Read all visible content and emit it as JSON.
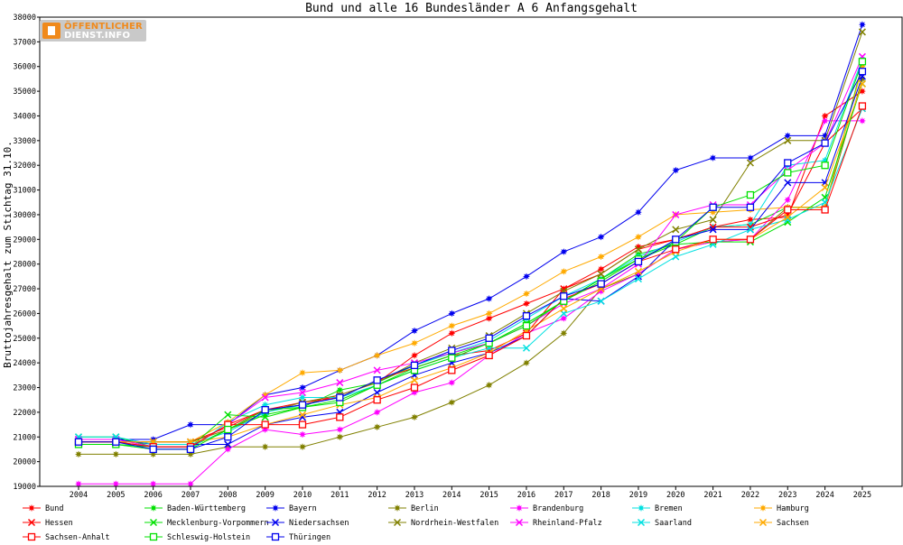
{
  "logo": {
    "line1": "ÖFFENTLICHER",
    "line2": "DIENST.INFO"
  },
  "chart_data": {
    "type": "line",
    "title": "Bund und alle 16 Bundesländer A 6 Anfangsgehalt",
    "ylabel": "Bruttojahresgehalt zum Stichtag 31.10.",
    "xlabel": "",
    "ylim": [
      19000,
      38000
    ],
    "yticks": [
      19000,
      20000,
      21000,
      22000,
      23000,
      24000,
      25000,
      26000,
      27000,
      28000,
      29000,
      30000,
      31000,
      32000,
      33000,
      34000,
      35000,
      36000,
      37000,
      38000
    ],
    "categories": [
      "2004",
      "2005",
      "2006",
      "2007",
      "2008",
      "2009",
      "2010",
      "2011",
      "2012",
      "2013",
      "2014",
      "2015",
      "2016",
      "2017",
      "2018",
      "2019",
      "2020",
      "2021",
      "2022",
      "2023",
      "2024",
      "2025"
    ],
    "grid": false,
    "legend_position": "bottom",
    "series": [
      {
        "name": "Bund",
        "color": "#ff0000",
        "marker": "star",
        "values": [
          20800,
          20800,
          20600,
          20600,
          21500,
          22100,
          22300,
          22700,
          23200,
          24300,
          25200,
          25800,
          26400,
          27000,
          27800,
          28700,
          29000,
          29500,
          29800,
          29900,
          34000,
          35000
        ]
      },
      {
        "name": "Baden-Württemberg",
        "color": "#00e000",
        "marker": "star",
        "values": [
          20700,
          20700,
          20600,
          20600,
          21300,
          21900,
          22200,
          22900,
          23200,
          23900,
          24400,
          24800,
          25600,
          26500,
          27400,
          28400,
          28800,
          29500,
          29600,
          30300,
          30300,
          36100
        ]
      },
      {
        "name": "Bayern",
        "color": "#0000ee",
        "marker": "star",
        "values": [
          20900,
          20900,
          20900,
          21500,
          21500,
          22700,
          23000,
          23700,
          24300,
          25300,
          26000,
          26600,
          27500,
          28500,
          29100,
          30100,
          31800,
          32300,
          32300,
          33200,
          33200,
          37700
        ]
      },
      {
        "name": "Berlin",
        "color": "#808000",
        "marker": "star",
        "values": [
          20300,
          20300,
          20300,
          20300,
          20600,
          20600,
          20600,
          21000,
          21400,
          21800,
          22400,
          23100,
          24000,
          25200,
          27000,
          27600,
          28600,
          28900,
          29000,
          30300,
          30300,
          35500
        ]
      },
      {
        "name": "Brandenburg",
        "color": "#ff00ff",
        "marker": "star",
        "values": [
          19100,
          19100,
          19100,
          19100,
          20500,
          21300,
          21100,
          21300,
          22000,
          22800,
          23200,
          24300,
          25200,
          25800,
          26900,
          27600,
          28600,
          28900,
          29000,
          30600,
          33800,
          33800
        ]
      },
      {
        "name": "Bremen",
        "color": "#00e0e0",
        "marker": "star",
        "values": [
          20700,
          20700,
          20500,
          20500,
          21600,
          22300,
          22600,
          22600,
          23300,
          23900,
          24400,
          24900,
          25800,
          26700,
          27400,
          28300,
          28900,
          29500,
          29600,
          32000,
          32200,
          36300
        ]
      },
      {
        "name": "Hamburg",
        "color": "#ffaa00",
        "marker": "star",
        "values": [
          20800,
          20800,
          20800,
          20800,
          21600,
          22700,
          23600,
          23700,
          24300,
          24800,
          25500,
          26000,
          26800,
          27700,
          28300,
          29100,
          30000,
          30100,
          30200,
          30300,
          30300,
          36000
        ]
      },
      {
        "name": "Hessen",
        "color": "#ff0000",
        "marker": "x",
        "values": [
          20800,
          20800,
          20800,
          20800,
          21400,
          22100,
          22400,
          22600,
          23300,
          23800,
          24300,
          24500,
          25200,
          27000,
          27600,
          28600,
          29000,
          29500,
          29500,
          30000,
          32900,
          34300
        ]
      },
      {
        "name": "Mecklenburg-Vorpommern",
        "color": "#00e000",
        "marker": "x",
        "values": [
          21000,
          21000,
          20600,
          20600,
          21900,
          21800,
          22200,
          22500,
          23100,
          23800,
          24300,
          24800,
          25600,
          26500,
          27400,
          28200,
          28800,
          28900,
          28900,
          29700,
          30700,
          35300
        ]
      },
      {
        "name": "Niedersachsen",
        "color": "#0000ee",
        "marker": "x",
        "values": [
          20900,
          20900,
          20700,
          20700,
          20700,
          21500,
          21800,
          22000,
          22800,
          23500,
          24000,
          24400,
          25100,
          26600,
          26500,
          27500,
          29000,
          29400,
          29400,
          31300,
          31300,
          35600
        ]
      },
      {
        "name": "Nordrhein-Westfalen",
        "color": "#808000",
        "marker": "x",
        "values": [
          20800,
          20800,
          20800,
          20800,
          21300,
          22000,
          22400,
          22700,
          23200,
          24000,
          24600,
          25100,
          26000,
          26900,
          27600,
          28600,
          29400,
          29800,
          32100,
          33000,
          33000,
          37400
        ]
      },
      {
        "name": "Rheinland-Pfalz",
        "color": "#ff00ff",
        "marker": "x",
        "values": [
          20900,
          20900,
          20600,
          20600,
          21500,
          22600,
          22800,
          23200,
          23700,
          24000,
          24400,
          24800,
          25500,
          26400,
          27000,
          28000,
          30000,
          30400,
          30400,
          31800,
          32900,
          36400
        ]
      },
      {
        "name": "Saarland",
        "color": "#00e0e0",
        "marker": "x",
        "values": [
          21000,
          21000,
          20700,
          20700,
          21200,
          22000,
          22300,
          22600,
          23100,
          23700,
          24200,
          24600,
          24600,
          26000,
          26500,
          27400,
          28300,
          28800,
          29400,
          29800,
          30500,
          34300
        ]
      },
      {
        "name": "Sachsen",
        "color": "#ffaa00",
        "marker": "x",
        "values": [
          20800,
          20800,
          20800,
          20800,
          21000,
          21500,
          21900,
          22300,
          22600,
          23300,
          23800,
          24400,
          25300,
          26200,
          27000,
          27700,
          28500,
          29000,
          29000,
          29900,
          31100,
          35300
        ]
      },
      {
        "name": "Sachsen-Anhalt",
        "color": "#ff0000",
        "marker": "square",
        "values": [
          20800,
          20800,
          20600,
          20600,
          21500,
          21500,
          21500,
          21800,
          22500,
          23000,
          23700,
          24300,
          25100,
          26600,
          27200,
          28100,
          28600,
          29000,
          29000,
          30200,
          30200,
          34400
        ]
      },
      {
        "name": "Schleswig-Holstein",
        "color": "#00e000",
        "marker": "square",
        "values": [
          20700,
          20700,
          20500,
          20500,
          21300,
          22100,
          22200,
          22400,
          23100,
          23700,
          24200,
          24800,
          25500,
          26500,
          27300,
          28200,
          28900,
          30300,
          30800,
          31700,
          32000,
          36200
        ]
      },
      {
        "name": "Thüringen",
        "color": "#0000ee",
        "marker": "square",
        "values": [
          20800,
          20800,
          20500,
          20500,
          21000,
          22100,
          22300,
          22600,
          23300,
          23900,
          24500,
          25000,
          25900,
          26700,
          27200,
          28100,
          29000,
          30300,
          30300,
          32100,
          32900,
          35800
        ]
      }
    ]
  }
}
